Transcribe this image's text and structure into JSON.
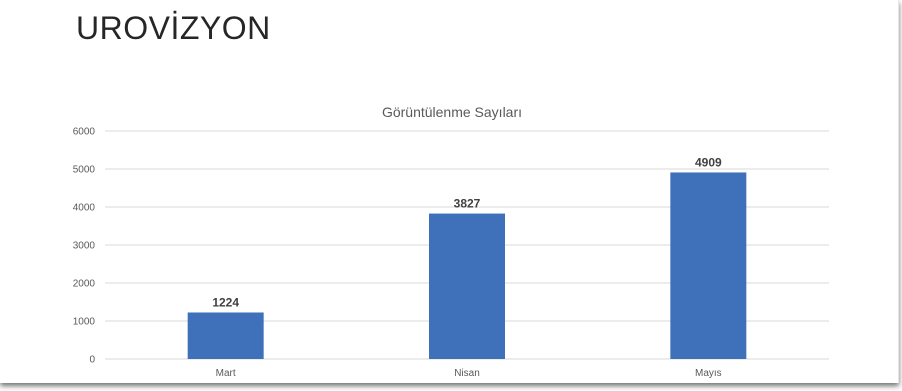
{
  "slide": {
    "title": "UROVİZYON"
  },
  "chart_data": {
    "type": "bar",
    "title": "Görüntülenme Sayıları",
    "categories": [
      "Mart",
      "Nisan",
      "Mayıs"
    ],
    "values": [
      1224,
      3827,
      4909
    ],
    "xlabel": "",
    "ylabel": "",
    "ylim": [
      0,
      6000
    ],
    "yticks": [
      0,
      1000,
      2000,
      3000,
      4000,
      5000,
      6000
    ],
    "grid": true,
    "data_labels": true,
    "bar_color": "#3f70ba"
  }
}
